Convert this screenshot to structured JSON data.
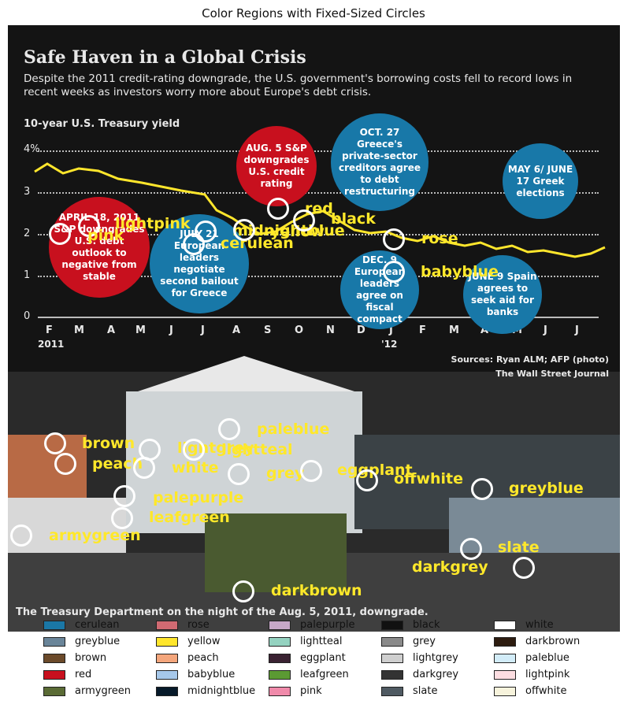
{
  "title": "Color Regions with Fixed-Sized Circles",
  "image": {
    "title": "Safe Haven in a Global Crisis",
    "subtitle": "Despite the 2011 credit-rating downgrade, the U.S. government's borrowing costs fell to record lows in recent weeks as investors worry more about Europe's debt crisis.",
    "chart_label": "10-year U.S. Treasury yield",
    "y_ticks": [
      "4%",
      "3",
      "2",
      "1",
      "0"
    ],
    "x_ticks": [
      "F",
      "M",
      "A",
      "M",
      "J",
      "J",
      "A",
      "S",
      "O",
      "N",
      "D",
      "J",
      "F",
      "M",
      "A",
      "M",
      "J",
      "J"
    ],
    "year_2011": "2011",
    "year_2012": "'12",
    "events": [
      {
        "text": "APRIL 18, 2011 S&P downgrades U.S. debt outlook to negative from stable"
      },
      {
        "text": "JULY 21 European leaders negotiate second bailout for Greece"
      },
      {
        "text": "AUG. 5 S&P downgrades U.S. credit rating"
      },
      {
        "text": "OCT. 27 Greece's private-sector creditors agree to debt restructuring"
      },
      {
        "text": "DEC. 9 European leaders agree on fiscal compact"
      },
      {
        "text": "MAY 6/ JUNE 17 Greek elections"
      },
      {
        "text": "JUNE 9 Spain agrees to seek aid for banks"
      }
    ],
    "sources": "Sources: Ryan ALM; AFP (photo)",
    "publisher": "The Wall Street Journal",
    "caption": "The Treasury Department on the night of the Aug. 5, 2011, downgrade."
  },
  "annotations": [
    {
      "label": "lightpink"
    },
    {
      "label": "pink"
    },
    {
      "label": "cerulean"
    },
    {
      "label": "midnightblue"
    },
    {
      "label": "yellow"
    },
    {
      "label": "red"
    },
    {
      "label": "black"
    },
    {
      "label": "rose"
    },
    {
      "label": "babyblue"
    },
    {
      "label": "brown"
    },
    {
      "label": "peach"
    },
    {
      "label": "lightgrey"
    },
    {
      "label": "white"
    },
    {
      "label": "paleblue"
    },
    {
      "label": "lightteal"
    },
    {
      "label": "grey"
    },
    {
      "label": "eggplant"
    },
    {
      "label": "offwhite"
    },
    {
      "label": "greyblue"
    },
    {
      "label": "palepurple"
    },
    {
      "label": "leafgreen"
    },
    {
      "label": "armygreen"
    },
    {
      "label": "slate"
    },
    {
      "label": "darkgrey"
    },
    {
      "label": "darkbrown"
    }
  ],
  "legend": [
    {
      "label": "cerulean",
      "color": "#1a77a6"
    },
    {
      "label": "greyblue",
      "color": "#6a8599"
    },
    {
      "label": "brown",
      "color": "#6b4a2a"
    },
    {
      "label": "red",
      "color": "#c8101e"
    },
    {
      "label": "armygreen",
      "color": "#5a6b35"
    },
    {
      "label": "rose",
      "color": "#d06a72"
    },
    {
      "label": "yellow",
      "color": "#ffe62c"
    },
    {
      "label": "peach",
      "color": "#f4a67c"
    },
    {
      "label": "babyblue",
      "color": "#a6c8ea"
    },
    {
      "label": "midnightblue",
      "color": "#071a2a"
    },
    {
      "label": "palepurple",
      "color": "#c7a8c8"
    },
    {
      "label": "lightteal",
      "color": "#94d2c0"
    },
    {
      "label": "eggplant",
      "color": "#3a2232"
    },
    {
      "label": "leafgreen",
      "color": "#5b9a33"
    },
    {
      "label": "pink",
      "color": "#f08aaa"
    },
    {
      "label": "black",
      "color": "#111111"
    },
    {
      "label": "grey",
      "color": "#8a8a8a"
    },
    {
      "label": "lightgrey",
      "color": "#cfcfcf"
    },
    {
      "label": "darkgrey",
      "color": "#333333"
    },
    {
      "label": "slate",
      "color": "#4f5a62"
    },
    {
      "label": "white",
      "color": "#ffffff"
    },
    {
      "label": "darkbrown",
      "color": "#2d1c10"
    },
    {
      "label": "paleblue",
      "color": "#d2ecf8"
    },
    {
      "label": "lightpink",
      "color": "#fcdde1"
    },
    {
      "label": "offwhite",
      "color": "#f7f3dc"
    }
  ]
}
